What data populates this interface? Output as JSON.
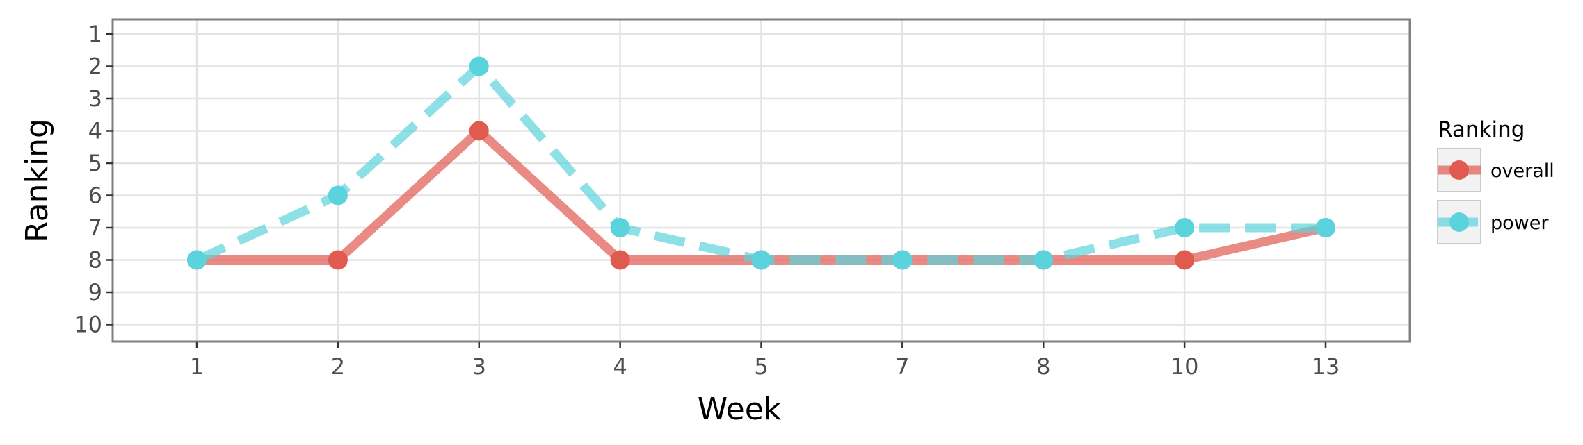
{
  "chart_data": {
    "type": "line",
    "categories": [
      "1",
      "2",
      "3",
      "4",
      "5",
      "7",
      "8",
      "10",
      "13"
    ],
    "xlabel": "Week",
    "ylabel": "Ranking",
    "y_reversed": true,
    "ylim": [
      1,
      10
    ],
    "y_ticks": [
      "1",
      "2",
      "3",
      "4",
      "5",
      "6",
      "7",
      "8",
      "9",
      "10"
    ],
    "grid": true,
    "legend": {
      "title": "Ranking",
      "position": "right"
    },
    "series": [
      {
        "name": "overall",
        "color": "#e05a50",
        "line_style": "solid",
        "values": [
          8,
          8,
          4,
          8,
          8,
          8,
          8,
          8,
          7
        ]
      },
      {
        "name": "power",
        "color": "#5bd3dc",
        "line_style": "dashed",
        "values": [
          8,
          6,
          2,
          7,
          8,
          8,
          8,
          7,
          7
        ]
      }
    ]
  }
}
